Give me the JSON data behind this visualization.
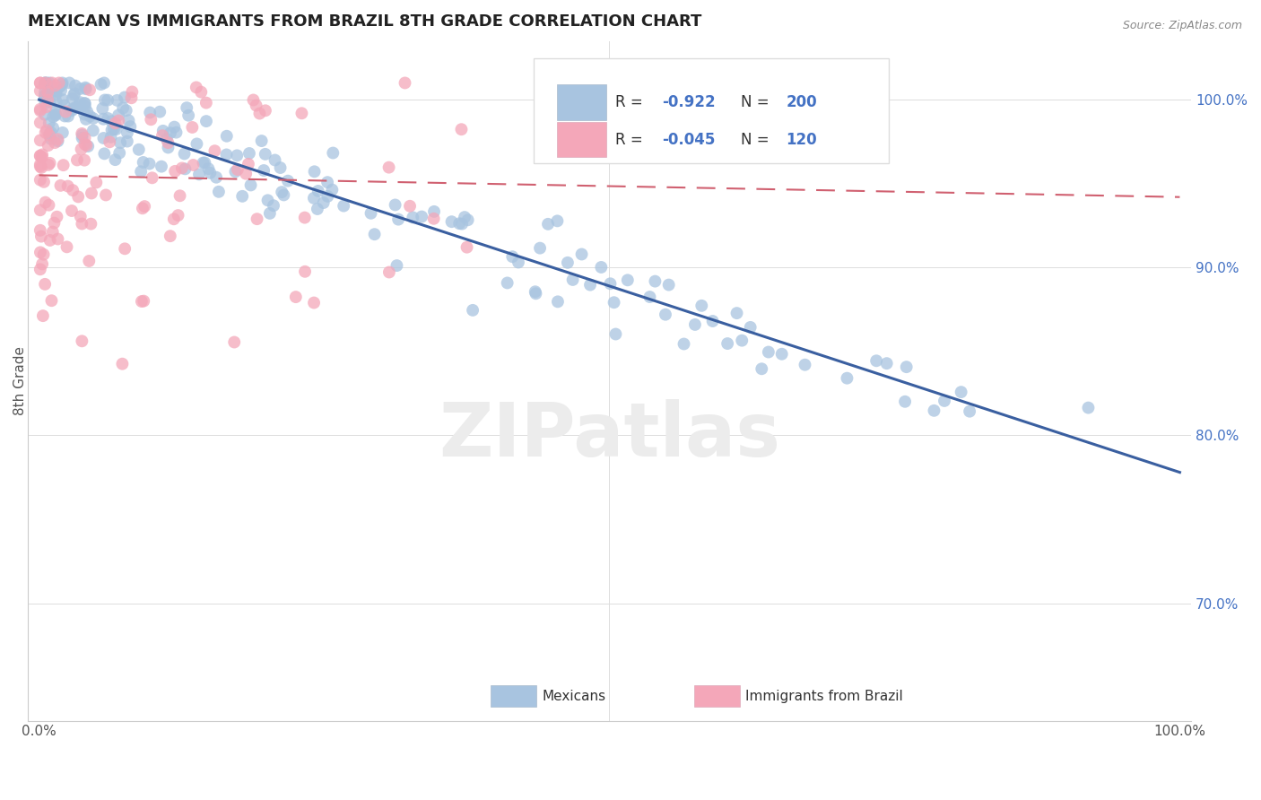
{
  "title": "MEXICAN VS IMMIGRANTS FROM BRAZIL 8TH GRADE CORRELATION CHART",
  "source": "Source: ZipAtlas.com",
  "ylabel": "8th Grade",
  "watermark": "ZIPatlas",
  "legend_r_blue": "R = ",
  "legend_rv_blue": "-0.922",
  "legend_n_blue": "N = ",
  "legend_nv_blue": "200",
  "legend_r_pink": "R = ",
  "legend_rv_pink": "-0.045",
  "legend_n_pink": "N = ",
  "legend_nv_pink": "120",
  "legend_labels": [
    "Mexicans",
    "Immigrants from Brazil"
  ],
  "blue_color": "#a8c4e0",
  "blue_line_color": "#3a5fa0",
  "pink_color": "#f4a7b9",
  "pink_line_color": "#d06070",
  "blue_seed": 42,
  "pink_seed": 17,
  "ylim_min": 0.63,
  "ylim_max": 1.035,
  "xlim_min": -0.01,
  "xlim_max": 1.01
}
